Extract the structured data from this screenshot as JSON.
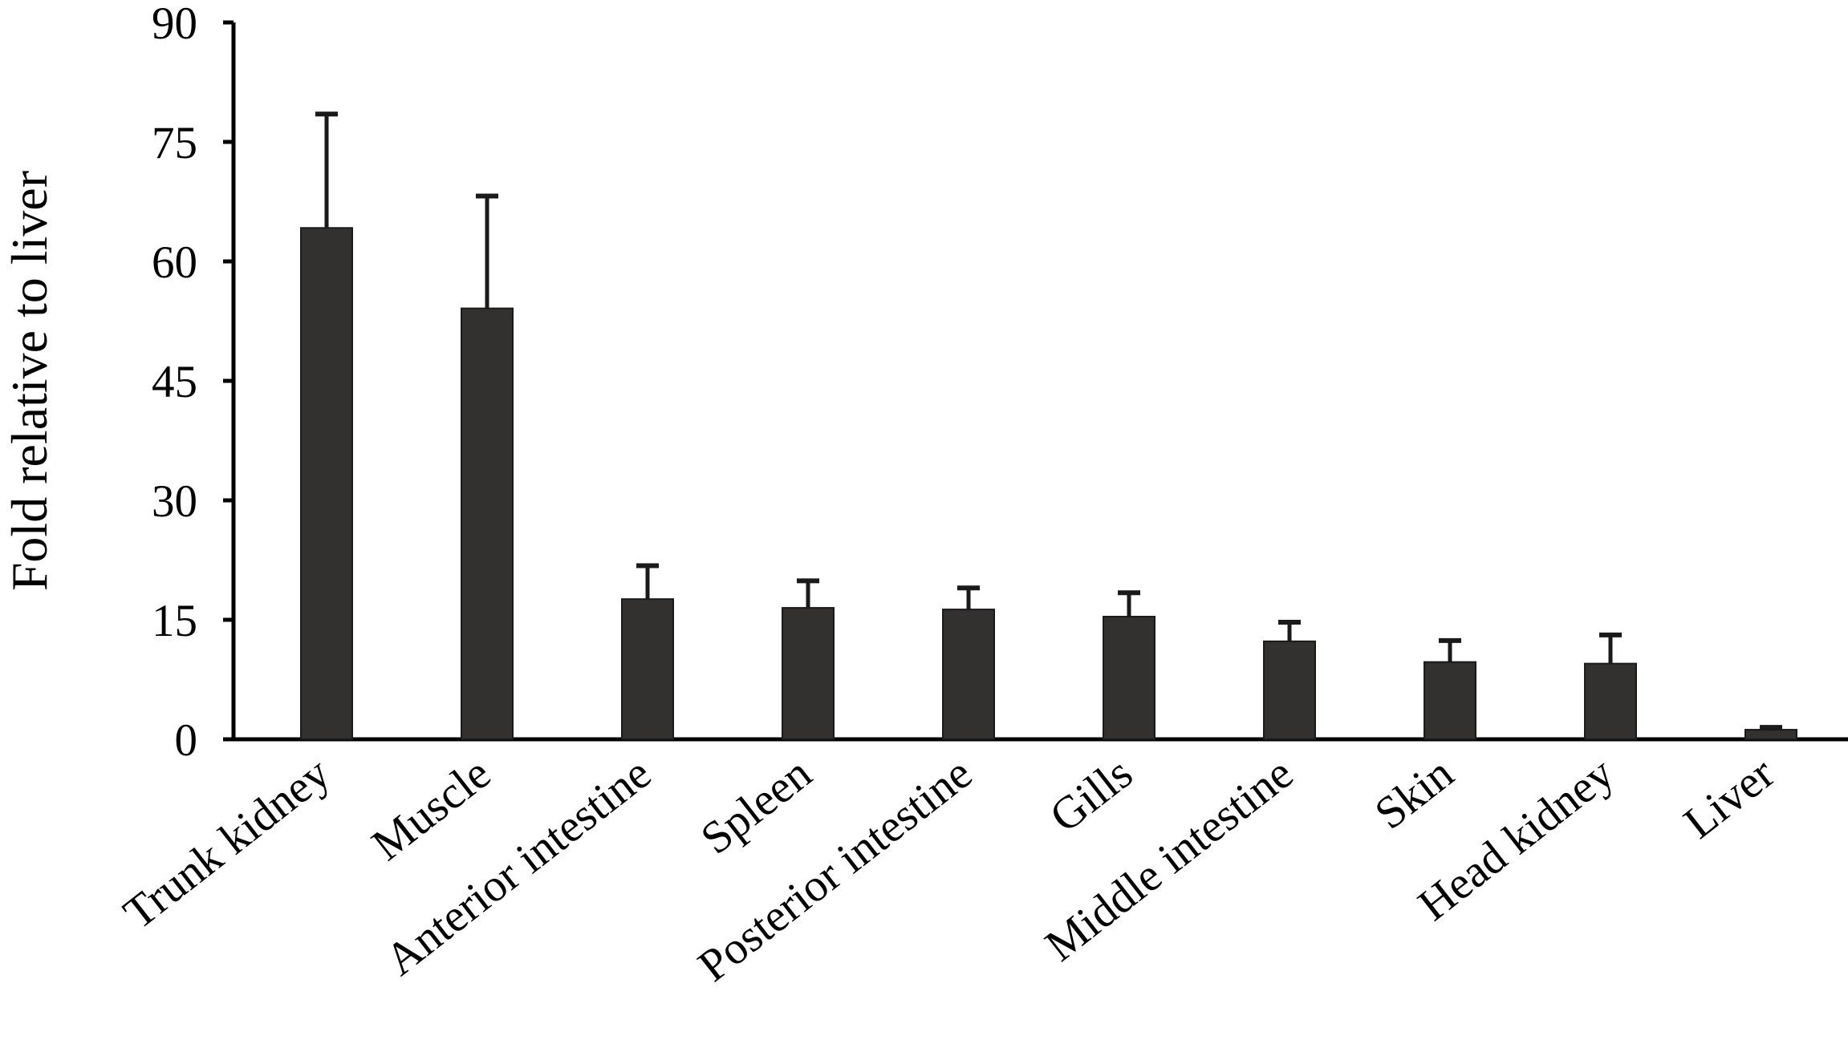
{
  "chart_data": {
    "type": "bar",
    "ylabel": "Fold relative to liver",
    "xlabel": "",
    "ylim": [
      0,
      90
    ],
    "yticks": [
      "0",
      "15",
      "30",
      "45",
      "60",
      "75",
      "90"
    ],
    "grid": false,
    "legend": "none",
    "bar_color": "#333030",
    "categories": [
      "Trunk kidney",
      "Muscle",
      "Anterior intestine",
      "Spleen",
      "Posterior intestine",
      "Gills",
      "Middle intestine",
      "Skin",
      "Head kidney",
      "Liver"
    ],
    "values": [
      64.2,
      54.1,
      17.6,
      16.5,
      16.3,
      15.4,
      12.3,
      9.7,
      9.5,
      1.2
    ],
    "errors": [
      14.3,
      14.1,
      4.2,
      3.4,
      2.7,
      3.0,
      2.4,
      2.7,
      3.6,
      0.3
    ]
  }
}
